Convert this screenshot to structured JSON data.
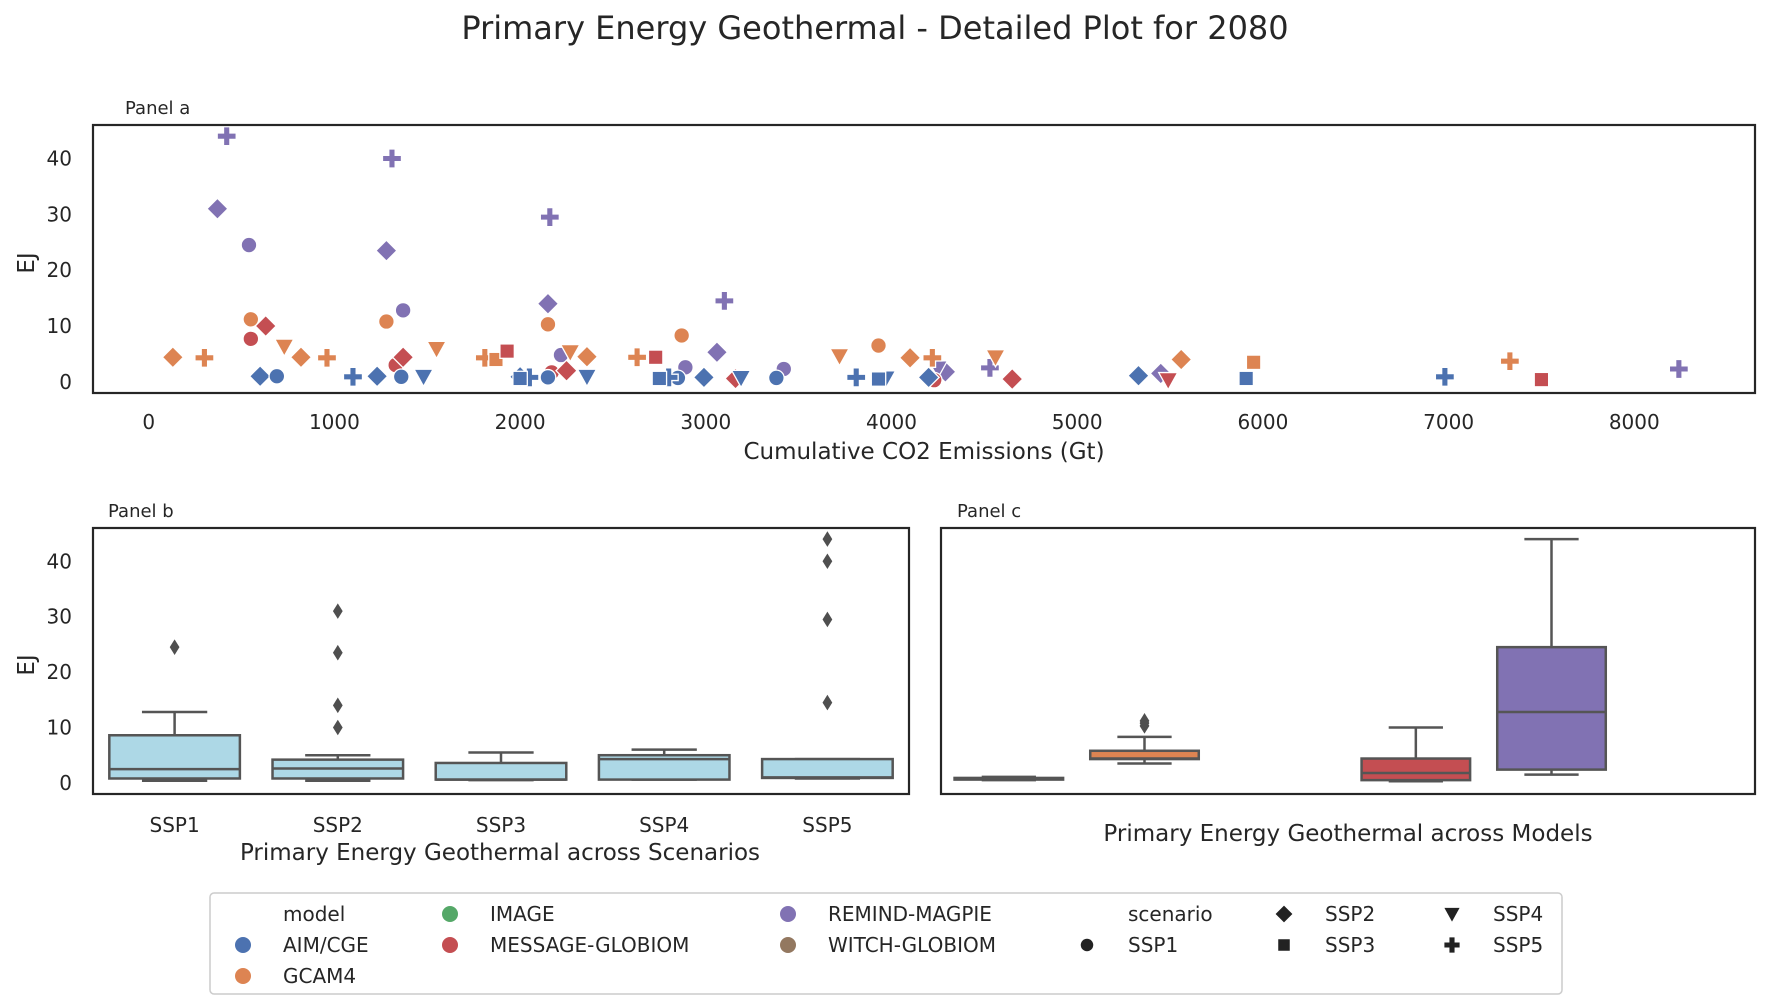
{
  "chart_data": {
    "suptitle": "Primary Energy Geothermal - Detailed Plot for 2080",
    "colors": {
      "AIM/CGE": "#4c72b0",
      "GCAM4": "#dd8452",
      "IMAGE": "#55a868",
      "MESSAGE-GLOBIOM": "#c44e52",
      "REMIND-MAGPIE": "#8172b3",
      "WITCH-GLOBIOM": "#937860",
      "box_scenario": "#add8e6",
      "box_edge": "#555555",
      "outlier": "#4f4f4f"
    },
    "panels": [
      {
        "type": "scatter",
        "title": "Panel a",
        "xlabel": "Cumulative CO2 Emissions (Gt)",
        "ylabel": "EJ",
        "xlim": [
          -300,
          8650
        ],
        "ylim": [
          -2,
          46
        ],
        "xticks": [
          0,
          1000,
          2000,
          3000,
          4000,
          5000,
          6000,
          7000,
          8000
        ],
        "yticks": [
          0,
          10,
          20,
          30,
          40
        ],
        "points": [
          {
            "x": 420,
            "y": 44,
            "model": "REMIND-MAGPIE",
            "scenario": "SSP5"
          },
          {
            "x": 1310,
            "y": 40,
            "model": "REMIND-MAGPIE",
            "scenario": "SSP5"
          },
          {
            "x": 2160,
            "y": 29.5,
            "model": "REMIND-MAGPIE",
            "scenario": "SSP5"
          },
          {
            "x": 3100,
            "y": 14.5,
            "model": "REMIND-MAGPIE",
            "scenario": "SSP5"
          },
          {
            "x": 4530,
            "y": 2.5,
            "model": "REMIND-MAGPIE",
            "scenario": "SSP5"
          },
          {
            "x": 8240,
            "y": 2.3,
            "model": "REMIND-MAGPIE",
            "scenario": "SSP5"
          },
          {
            "x": 370,
            "y": 31,
            "model": "REMIND-MAGPIE",
            "scenario": "SSP2"
          },
          {
            "x": 1280,
            "y": 23.5,
            "model": "REMIND-MAGPIE",
            "scenario": "SSP2"
          },
          {
            "x": 2150,
            "y": 14,
            "model": "REMIND-MAGPIE",
            "scenario": "SSP2"
          },
          {
            "x": 3060,
            "y": 5.3,
            "model": "REMIND-MAGPIE",
            "scenario": "SSP2"
          },
          {
            "x": 4290,
            "y": 1.8,
            "model": "REMIND-MAGPIE",
            "scenario": "SSP2"
          },
          {
            "x": 5450,
            "y": 1.5,
            "model": "REMIND-MAGPIE",
            "scenario": "SSP2"
          },
          {
            "x": 540,
            "y": 24.5,
            "model": "REMIND-MAGPIE",
            "scenario": "SSP1"
          },
          {
            "x": 1370,
            "y": 12.8,
            "model": "REMIND-MAGPIE",
            "scenario": "SSP1"
          },
          {
            "x": 2220,
            "y": 4.8,
            "model": "REMIND-MAGPIE",
            "scenario": "SSP1"
          },
          {
            "x": 2890,
            "y": 2.6,
            "model": "REMIND-MAGPIE",
            "scenario": "SSP1"
          },
          {
            "x": 3420,
            "y": 2.3,
            "model": "REMIND-MAGPIE",
            "scenario": "SSP1"
          },
          {
            "x": 4250,
            "y": 2.4,
            "model": "REMIND-MAGPIE",
            "scenario": "SSP4"
          },
          {
            "x": 550,
            "y": 11.2,
            "model": "GCAM4",
            "scenario": "SSP1"
          },
          {
            "x": 1280,
            "y": 10.8,
            "model": "GCAM4",
            "scenario": "SSP1"
          },
          {
            "x": 2150,
            "y": 10.3,
            "model": "GCAM4",
            "scenario": "SSP1"
          },
          {
            "x": 2870,
            "y": 8.3,
            "model": "GCAM4",
            "scenario": "SSP1"
          },
          {
            "x": 3930,
            "y": 6.5,
            "model": "GCAM4",
            "scenario": "SSP1"
          },
          {
            "x": 130,
            "y": 4.4,
            "model": "GCAM4",
            "scenario": "SSP2"
          },
          {
            "x": 820,
            "y": 4.4,
            "model": "GCAM4",
            "scenario": "SSP2"
          },
          {
            "x": 2360,
            "y": 4.5,
            "model": "GCAM4",
            "scenario": "SSP2"
          },
          {
            "x": 4100,
            "y": 4.3,
            "model": "GCAM4",
            "scenario": "SSP2"
          },
          {
            "x": 5560,
            "y": 4.0,
            "model": "GCAM4",
            "scenario": "SSP2"
          },
          {
            "x": 300,
            "y": 4.3,
            "model": "GCAM4",
            "scenario": "SSP5"
          },
          {
            "x": 960,
            "y": 4.3,
            "model": "GCAM4",
            "scenario": "SSP5"
          },
          {
            "x": 1810,
            "y": 4.3,
            "model": "GCAM4",
            "scenario": "SSP5"
          },
          {
            "x": 2630,
            "y": 4.4,
            "model": "GCAM4",
            "scenario": "SSP5"
          },
          {
            "x": 4220,
            "y": 4.3,
            "model": "GCAM4",
            "scenario": "SSP5"
          },
          {
            "x": 7330,
            "y": 3.7,
            "model": "GCAM4",
            "scenario": "SSP5"
          },
          {
            "x": 730,
            "y": 6.3,
            "model": "GCAM4",
            "scenario": "SSP4"
          },
          {
            "x": 1550,
            "y": 5.9,
            "model": "GCAM4",
            "scenario": "SSP4"
          },
          {
            "x": 2270,
            "y": 5.3,
            "model": "GCAM4",
            "scenario": "SSP4"
          },
          {
            "x": 3720,
            "y": 4.6,
            "model": "GCAM4",
            "scenario": "SSP4"
          },
          {
            "x": 4560,
            "y": 4.4,
            "model": "GCAM4",
            "scenario": "SSP4"
          },
          {
            "x": 1870,
            "y": 4.0,
            "model": "GCAM4",
            "scenario": "SSP3"
          },
          {
            "x": 5950,
            "y": 3.5,
            "model": "GCAM4",
            "scenario": "SSP3"
          },
          {
            "x": 550,
            "y": 7.7,
            "model": "MESSAGE-GLOBIOM",
            "scenario": "SSP1"
          },
          {
            "x": 1330,
            "y": 3.0,
            "model": "MESSAGE-GLOBIOM",
            "scenario": "SSP1"
          },
          {
            "x": 2170,
            "y": 1.7,
            "model": "MESSAGE-GLOBIOM",
            "scenario": "SSP1"
          },
          {
            "x": 4230,
            "y": 0.3,
            "model": "MESSAGE-GLOBIOM",
            "scenario": "SSP1"
          },
          {
            "x": 630,
            "y": 10.0,
            "model": "MESSAGE-GLOBIOM",
            "scenario": "SSP2"
          },
          {
            "x": 1370,
            "y": 4.4,
            "model": "MESSAGE-GLOBIOM",
            "scenario": "SSP2"
          },
          {
            "x": 2250,
            "y": 2.0,
            "model": "MESSAGE-GLOBIOM",
            "scenario": "SSP2"
          },
          {
            "x": 3160,
            "y": 0.6,
            "model": "MESSAGE-GLOBIOM",
            "scenario": "SSP2"
          },
          {
            "x": 4650,
            "y": 0.5,
            "model": "MESSAGE-GLOBIOM",
            "scenario": "SSP2"
          },
          {
            "x": 1930,
            "y": 5.5,
            "model": "MESSAGE-GLOBIOM",
            "scenario": "SSP3"
          },
          {
            "x": 2730,
            "y": 4.4,
            "model": "MESSAGE-GLOBIOM",
            "scenario": "SSP3"
          },
          {
            "x": 7500,
            "y": 0.4,
            "model": "MESSAGE-GLOBIOM",
            "scenario": "SSP3"
          },
          {
            "x": 5490,
            "y": 0.3,
            "model": "MESSAGE-GLOBIOM",
            "scenario": "SSP4"
          },
          {
            "x": 600,
            "y": 1.0,
            "model": "AIM/CGE",
            "scenario": "SSP2"
          },
          {
            "x": 1230,
            "y": 1.0,
            "model": "AIM/CGE",
            "scenario": "SSP2"
          },
          {
            "x": 2000,
            "y": 0.9,
            "model": "AIM/CGE",
            "scenario": "SSP2"
          },
          {
            "x": 2990,
            "y": 0.8,
            "model": "AIM/CGE",
            "scenario": "SSP2"
          },
          {
            "x": 4200,
            "y": 0.8,
            "model": "AIM/CGE",
            "scenario": "SSP2"
          },
          {
            "x": 5330,
            "y": 1.1,
            "model": "AIM/CGE",
            "scenario": "SSP2"
          },
          {
            "x": 690,
            "y": 1.0,
            "model": "AIM/CGE",
            "scenario": "SSP1"
          },
          {
            "x": 1360,
            "y": 0.9,
            "model": "AIM/CGE",
            "scenario": "SSP1"
          },
          {
            "x": 2150,
            "y": 0.8,
            "model": "AIM/CGE",
            "scenario": "SSP1"
          },
          {
            "x": 2850,
            "y": 0.7,
            "model": "AIM/CGE",
            "scenario": "SSP1"
          },
          {
            "x": 3380,
            "y": 0.7,
            "model": "AIM/CGE",
            "scenario": "SSP1"
          },
          {
            "x": 1100,
            "y": 0.9,
            "model": "AIM/CGE",
            "scenario": "SSP5"
          },
          {
            "x": 2050,
            "y": 0.8,
            "model": "AIM/CGE",
            "scenario": "SSP5"
          },
          {
            "x": 2800,
            "y": 0.8,
            "model": "AIM/CGE",
            "scenario": "SSP5"
          },
          {
            "x": 3810,
            "y": 0.8,
            "model": "AIM/CGE",
            "scenario": "SSP5"
          },
          {
            "x": 6980,
            "y": 0.9,
            "model": "AIM/CGE",
            "scenario": "SSP5"
          },
          {
            "x": 1480,
            "y": 0.9,
            "model": "AIM/CGE",
            "scenario": "SSP4"
          },
          {
            "x": 2360,
            "y": 0.9,
            "model": "AIM/CGE",
            "scenario": "SSP4"
          },
          {
            "x": 3190,
            "y": 0.7,
            "model": "AIM/CGE",
            "scenario": "SSP4"
          },
          {
            "x": 3970,
            "y": 0.6,
            "model": "AIM/CGE",
            "scenario": "SSP4"
          },
          {
            "x": 2000,
            "y": 0.6,
            "model": "AIM/CGE",
            "scenario": "SSP3"
          },
          {
            "x": 2750,
            "y": 0.6,
            "model": "AIM/CGE",
            "scenario": "SSP3"
          },
          {
            "x": 3930,
            "y": 0.5,
            "model": "AIM/CGE",
            "scenario": "SSP3"
          },
          {
            "x": 5910,
            "y": 0.6,
            "model": "AIM/CGE",
            "scenario": "SSP3"
          }
        ]
      },
      {
        "type": "box",
        "title": "Panel b",
        "xlabel": "Primary Energy Geothermal across Scenarios",
        "ylabel": "EJ",
        "ylim": [
          -2,
          46
        ],
        "yticks": [
          0,
          10,
          20,
          30,
          40
        ],
        "categories": [
          "SSP1",
          "SSP2",
          "SSP3",
          "SSP4",
          "SSP5"
        ],
        "boxes": [
          {
            "whislo": 0.4,
            "q1": 0.8,
            "med": 2.5,
            "q3": 8.6,
            "whishi": 12.8,
            "fliers": [
              24.5
            ]
          },
          {
            "whislo": 0.4,
            "q1": 0.8,
            "med": 2.6,
            "q3": 4.2,
            "whishi": 5.0,
            "fliers": [
              10.0,
              14.0,
              23.5,
              31.0
            ]
          },
          {
            "whislo": 0.5,
            "q1": 0.6,
            "med": 0.6,
            "q3": 3.6,
            "whishi": 5.5,
            "fliers": []
          },
          {
            "whislo": 0.6,
            "q1": 0.6,
            "med": 4.3,
            "q3": 5.0,
            "whishi": 6.0,
            "fliers": []
          },
          {
            "whislo": 0.8,
            "q1": 0.9,
            "med": 1.0,
            "q3": 4.3,
            "whishi": 4.3,
            "fliers": [
              14.5,
              29.5,
              40.0,
              44.0
            ]
          }
        ]
      },
      {
        "type": "box",
        "title": "Panel c",
        "xlabel": "Primary Energy Geothermal across Models",
        "ylim": [
          -2,
          46
        ],
        "categories": [
          "AIM/CGE",
          "GCAM4",
          "IMAGE",
          "MESSAGE-GLOBIOM",
          "REMIND-MAGPIE",
          "WITCH-GLOBIOM"
        ],
        "boxes": [
          {
            "whislo": 0.5,
            "q1": 0.6,
            "med": 0.8,
            "q3": 0.9,
            "whishi": 1.1,
            "fliers": []
          },
          {
            "whislo": 3.5,
            "q1": 4.3,
            "med": 4.4,
            "q3": 5.8,
            "whishi": 8.3,
            "fliers": [
              10.3,
              10.8,
              11.2
            ]
          },
          null,
          {
            "whislo": 0.3,
            "q1": 0.5,
            "med": 1.8,
            "q3": 4.4,
            "whishi": 10.0,
            "fliers": []
          },
          {
            "whislo": 1.5,
            "q1": 2.4,
            "med": 12.8,
            "q3": 24.5,
            "whishi": 44.0,
            "fliers": []
          },
          null
        ]
      }
    ],
    "legend": {
      "placement": "bottom-center",
      "model_title": "model",
      "models": [
        "AIM/CGE",
        "GCAM4",
        "IMAGE",
        "MESSAGE-GLOBIOM",
        "REMIND-MAGPIE",
        "WITCH-GLOBIOM"
      ],
      "scenario_title": "scenario",
      "scenarios": [
        {
          "name": "SSP1",
          "marker": "circle"
        },
        {
          "name": "SSP2",
          "marker": "diamond"
        },
        {
          "name": "SSP3",
          "marker": "square"
        },
        {
          "name": "SSP4",
          "marker": "triangle-down"
        },
        {
          "name": "SSP5",
          "marker": "plus"
        }
      ]
    }
  }
}
